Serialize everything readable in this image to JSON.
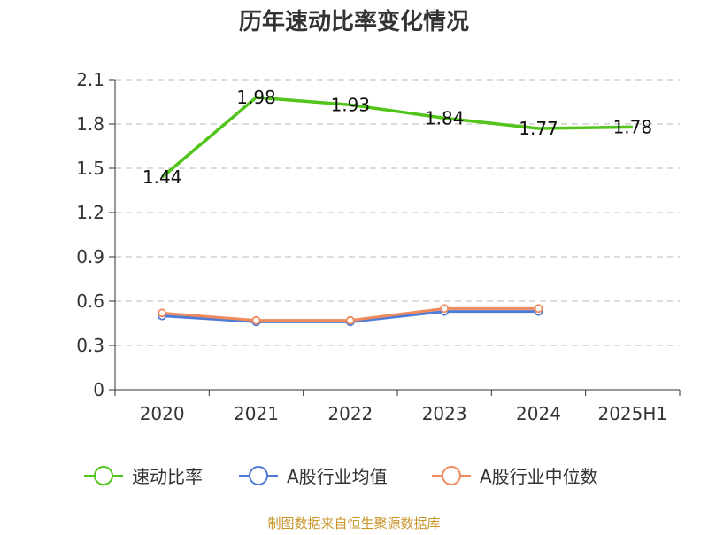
{
  "chart_data": {
    "type": "line",
    "title": "历年速动比率变化情况",
    "categories": [
      "2020",
      "2021",
      "2022",
      "2023",
      "2024",
      "2025H1"
    ],
    "ylim": [
      0,
      2.1
    ],
    "yticks": [
      "0",
      "0.3",
      "0.6",
      "0.9",
      "1.2",
      "1.5",
      "1.8",
      "2.1"
    ],
    "grid": true,
    "legend_position": "bottom",
    "series": [
      {
        "name": "速动比率",
        "color": "#52c41a",
        "values": [
          1.44,
          1.98,
          1.93,
          1.84,
          1.77,
          1.78
        ],
        "labels": [
          "1.44",
          "1.98",
          "1.93",
          "1.84",
          "1.77",
          "1.78"
        ]
      },
      {
        "name": "A股行业均值",
        "color": "#4e7ad8",
        "values": [
          0.5,
          0.46,
          0.46,
          0.53,
          0.53,
          null
        ]
      },
      {
        "name": "A股行业中位数",
        "color": "#f08a5d",
        "values": [
          0.52,
          0.47,
          0.47,
          0.55,
          0.55,
          null
        ]
      }
    ],
    "source": "制图数据来自恒生聚源数据库"
  }
}
